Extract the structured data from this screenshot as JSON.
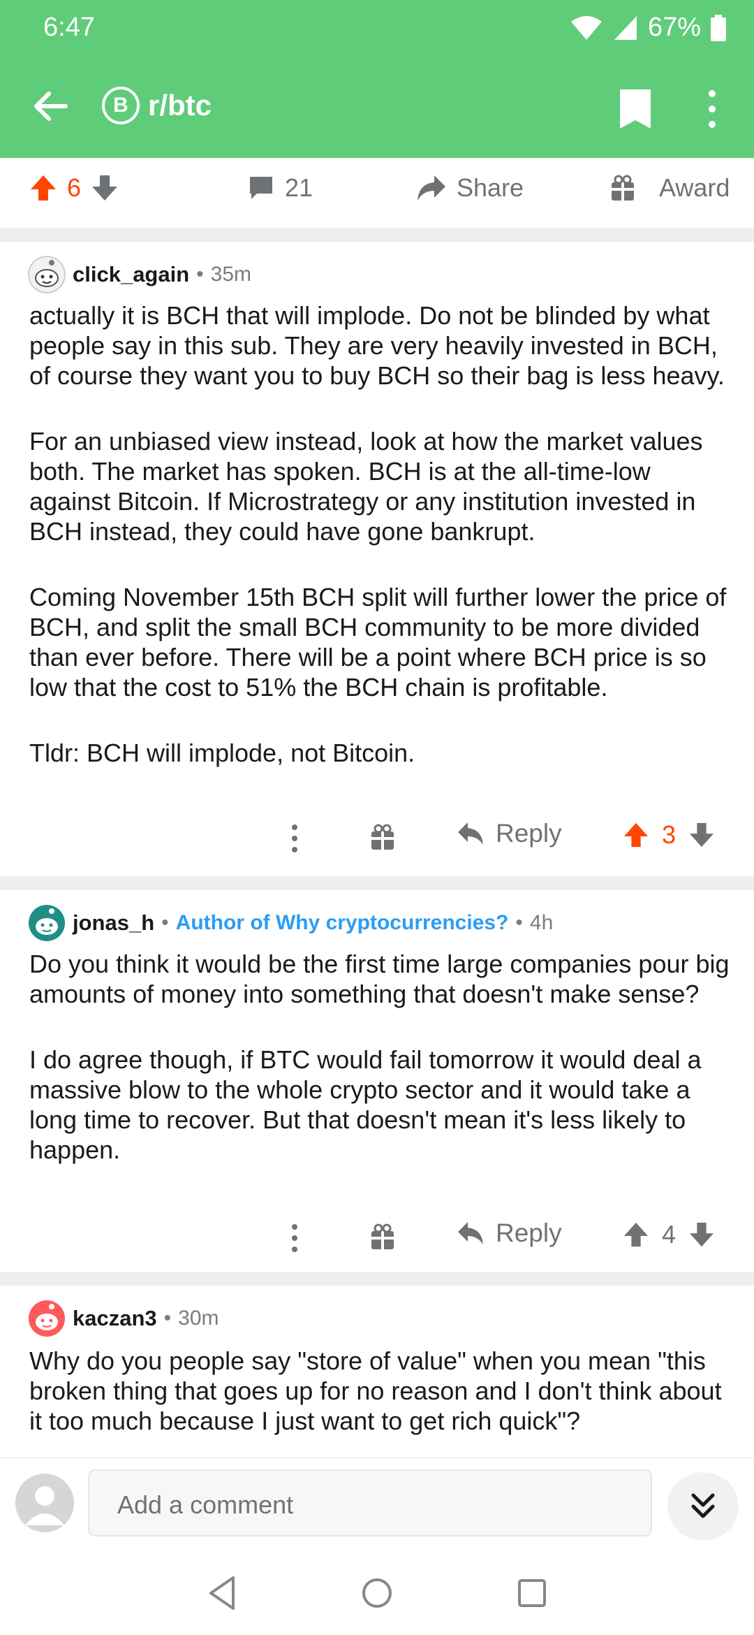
{
  "status_bar": {
    "time": "6:47",
    "battery": "67%"
  },
  "toolbar": {
    "subreddit": "r/btc",
    "subreddit_icon_letter": "B"
  },
  "post_actions": {
    "score": "6",
    "comments": "21",
    "share_label": "Share",
    "award_label": "Award"
  },
  "comments": [
    {
      "user": "click_again",
      "flair": "",
      "age": "35m",
      "paragraphs": [
        "actually it is BCH that will implode. Do not be blinded by what people say in this sub. They are very heavily invested in BCH, of course they want you to buy BCH so their bag is less heavy.",
        "For an unbiased view instead, look at how the market values both. The market has spoken. BCH is at the all-time-low against Bitcoin. If Microstrategy or any institution invested in BCH instead, they could have gone bankrupt.",
        "Coming November 15th BCH split will further lower the price of BCH, and split the small BCH community to be more divided than ever before. There will be a point where BCH price is so low that the cost to 51% the BCH chain is profitable.",
        "Tldr: BCH will implode, not Bitcoin."
      ],
      "reply_label": "Reply",
      "score": "3",
      "upvoted": true
    },
    {
      "user": "jonas_h",
      "flair": "Author of Why cryptocurrencies?",
      "age": "4h",
      "paragraphs": [
        "Do you think it would be the first time large companies pour big amounts of money into something that doesn't make sense?",
        "I do agree though, if BTC would fail tomorrow it would deal a massive blow to the whole crypto sector and it would take a long time to recover. But that doesn't mean it's less likely to happen."
      ],
      "reply_label": "Reply",
      "score": "4",
      "upvoted": false
    },
    {
      "user": "kaczan3",
      "flair": "",
      "age": "30m",
      "paragraphs": [
        "Why do you people say \"store of value\" when you mean \"this broken thing that goes up for no reason and I don't think about it too much because I just want to get rich quick\"?"
      ]
    }
  ],
  "comment_bar": {
    "placeholder": "Add a comment"
  },
  "colors": {
    "header": "#5fcc7a",
    "upvote": "#ff4500",
    "flair": "#2a9df4"
  }
}
